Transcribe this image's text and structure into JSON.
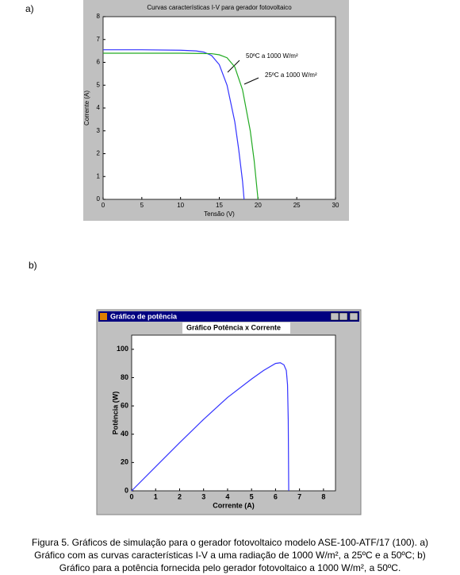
{
  "panel_labels": [
    "a)",
    "b)"
  ],
  "chart_data": [
    {
      "type": "line",
      "title": "Curvas características I-V para gerador fotovoltaico",
      "xlabel": "Tensão (V)",
      "ylabel": "Corrente (A)",
      "xlim": [
        0,
        30
      ],
      "xticks": [
        0,
        5,
        10,
        15,
        20,
        25,
        30
      ],
      "ylim": [
        0,
        8
      ],
      "yticks": [
        0,
        1,
        2,
        3,
        4,
        5,
        6,
        7,
        8
      ],
      "grid": false,
      "series": [
        {
          "name": "50ºC a 1000 W/m²",
          "color": "#3333ff",
          "x": [
            0,
            5,
            10,
            12,
            13,
            14,
            15,
            16,
            17,
            17.5,
            18,
            18.2
          ],
          "values": [
            6.55,
            6.55,
            6.53,
            6.5,
            6.45,
            6.3,
            5.9,
            5.0,
            3.4,
            2.2,
            0.8,
            0
          ]
        },
        {
          "name": "25ºC a 1000 W/m²",
          "color": "#22aa22",
          "x": [
            0,
            5,
            10,
            14,
            15,
            16,
            17,
            18,
            19,
            19.5,
            20
          ],
          "values": [
            6.4,
            6.4,
            6.4,
            6.38,
            6.33,
            6.2,
            5.8,
            4.8,
            3.0,
            1.7,
            0
          ]
        }
      ]
    },
    {
      "type": "line",
      "window_title": "Gráfico de potência",
      "title": "Gráfico Potência x Corrente",
      "xlabel": "Corrente (A)",
      "ylabel": "Potência (W)",
      "xlim": [
        0,
        8.5
      ],
      "xticks": [
        0,
        1,
        2,
        3,
        4,
        5,
        6,
        7,
        8
      ],
      "ylim": [
        0,
        110
      ],
      "yticks": [
        0,
        20,
        40,
        60,
        80,
        100
      ],
      "grid": false,
      "series": [
        {
          "color": "#3333ff",
          "x": [
            0,
            1,
            2,
            3,
            4,
            5,
            5.5,
            6,
            6.2,
            6.35,
            6.45,
            6.5,
            6.53,
            6.55
          ],
          "values": [
            0,
            17,
            34,
            50.5,
            66,
            79,
            85,
            90,
            90.5,
            89,
            85,
            75,
            50,
            0
          ]
        }
      ]
    }
  ],
  "caption": [
    "Figura 5.  Gráficos de simulação para o gerador fotovoltaico modelo ASE-100-ATF/17 (100). a)",
    "Gráfico com as curvas características I-V a uma radiação de 1000 W/m², a 25ºC e a 50ºC; b)",
    "Gráfico para a potência fornecida pelo gerador fotovoltaico a 1000 W/m², a 50ºC."
  ]
}
